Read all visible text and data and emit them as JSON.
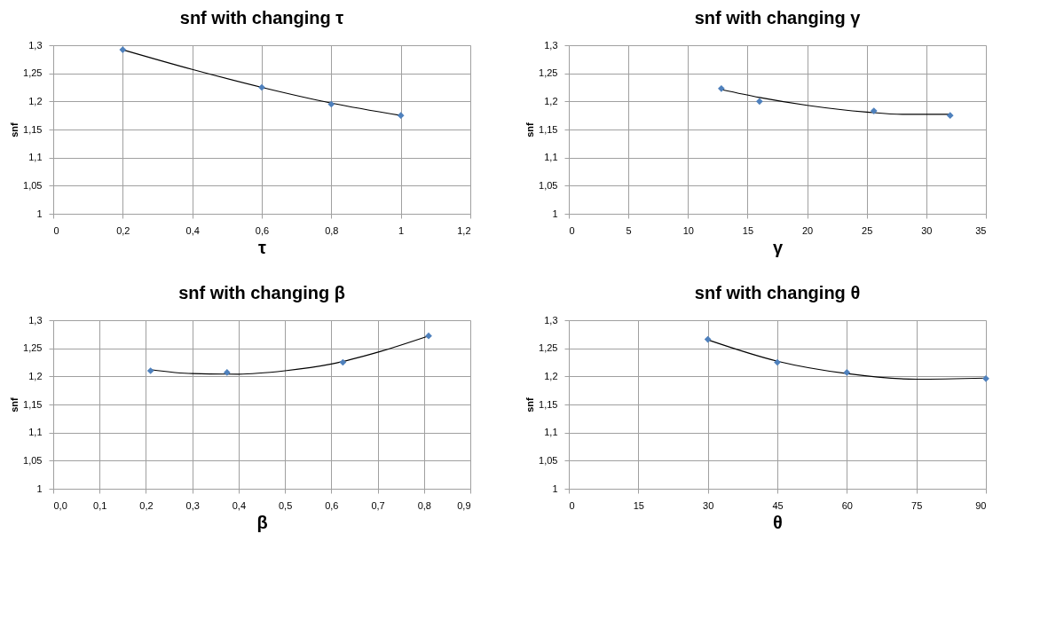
{
  "chart_data": [
    {
      "type": "scatter",
      "title": "snf with changing τ",
      "xlabel": "τ",
      "ylabel": "snf",
      "marker": "diamond",
      "grid": true,
      "xlim": [
        0,
        1.2
      ],
      "xticks": [
        0,
        {
          "value": 0.2,
          "label": "0,2"
        },
        {
          "value": 0.4,
          "label": "0,4"
        },
        {
          "value": 0.6,
          "label": "0,6"
        },
        {
          "value": 0.8,
          "label": "0,8"
        },
        1,
        {
          "value": 1.2,
          "label": "1,2"
        }
      ],
      "ylim": [
        1,
        1.3
      ],
      "yticks": [
        {
          "value": 1,
          "label": "1"
        },
        {
          "value": 1.05,
          "label": "1,05"
        },
        {
          "value": 1.1,
          "label": "1,1"
        },
        {
          "value": 1.15,
          "label": "1,15"
        },
        {
          "value": 1.2,
          "label": "1,2"
        },
        {
          "value": 1.25,
          "label": "1,25"
        },
        {
          "value": 1.3,
          "label": "1,3"
        }
      ],
      "series": [
        {
          "color": "#4f81bd",
          "x": [
            0.2,
            0.6,
            0.8,
            1
          ],
          "values": [
            1.292,
            1.225,
            1.195,
            1.175
          ]
        },
        {
          "type": "line",
          "marker": "none",
          "color": "#000000",
          "x": [
            0.2,
            0.4,
            0.6,
            0.8,
            1
          ],
          "values": [
            1.292,
            1.257,
            1.225,
            1.197,
            1.175
          ]
        }
      ]
    },
    {
      "type": "scatter",
      "title": "snf with changing γ",
      "xlabel": "γ",
      "ylabel": "snf",
      "marker": "diamond",
      "grid": true,
      "xlim": [
        0,
        35
      ],
      "xticks": [
        0,
        5,
        10,
        15,
        20,
        25,
        30,
        35
      ],
      "ylim": [
        1,
        1.3
      ],
      "yticks": [
        {
          "value": 1,
          "label": "1"
        },
        {
          "value": 1.05,
          "label": "1,05"
        },
        {
          "value": 1.1,
          "label": "1,1"
        },
        {
          "value": 1.15,
          "label": "1,15"
        },
        {
          "value": 1.2,
          "label": "1,2"
        },
        {
          "value": 1.25,
          "label": "1,25"
        },
        {
          "value": 1.3,
          "label": "1,3"
        }
      ],
      "series": [
        {
          "color": "#4f81bd",
          "x": [
            12.8,
            16,
            25.6,
            32
          ],
          "values": [
            1.223,
            1.2,
            1.183,
            1.175
          ]
        },
        {
          "type": "line",
          "marker": "none",
          "color": "#000000",
          "x": [
            12.8,
            16,
            20,
            25,
            28,
            32
          ],
          "values": [
            1.221,
            1.207,
            1.193,
            1.181,
            1.177,
            1.177
          ]
        }
      ]
    },
    {
      "type": "scatter",
      "title": "snf with changing β",
      "xlabel": "β",
      "ylabel": "snf",
      "marker": "diamond",
      "grid": true,
      "xlim": [
        0,
        0.9
      ],
      "xticks": [
        {
          "value": 0,
          "label": "0,0"
        },
        {
          "value": 0.1,
          "label": "0,1"
        },
        {
          "value": 0.2,
          "label": "0,2"
        },
        {
          "value": 0.3,
          "label": "0,3"
        },
        {
          "value": 0.4,
          "label": "0,4"
        },
        {
          "value": 0.5,
          "label": "0,5"
        },
        {
          "value": 0.6,
          "label": "0,6"
        },
        {
          "value": 0.7,
          "label": "0,7"
        },
        {
          "value": 0.8,
          "label": "0,8"
        },
        {
          "value": 0.9,
          "label": "0,9"
        }
      ],
      "ylim": [
        1,
        1.3
      ],
      "yticks": [
        {
          "value": 1,
          "label": "1"
        },
        {
          "value": 1.05,
          "label": "1,05"
        },
        {
          "value": 1.1,
          "label": "1,1"
        },
        {
          "value": 1.15,
          "label": "1,15"
        },
        {
          "value": 1.2,
          "label": "1,2"
        },
        {
          "value": 1.25,
          "label": "1,25"
        },
        {
          "value": 1.3,
          "label": "1,3"
        }
      ],
      "series": [
        {
          "color": "#4f81bd",
          "x": [
            0.21,
            0.375,
            0.625,
            0.81
          ],
          "values": [
            1.21,
            1.207,
            1.225,
            1.272
          ]
        },
        {
          "type": "line",
          "marker": "none",
          "color": "#000000",
          "x": [
            0.21,
            0.3,
            0.4,
            0.5,
            0.6,
            0.7,
            0.81
          ],
          "values": [
            1.212,
            1.205,
            1.204,
            1.21,
            1.222,
            1.243,
            1.272
          ]
        }
      ]
    },
    {
      "type": "scatter",
      "title": "snf with changing θ",
      "xlabel": "θ",
      "ylabel": "snf",
      "marker": "diamond",
      "grid": true,
      "xlim": [
        0,
        90
      ],
      "xticks": [
        0,
        15,
        30,
        45,
        60,
        75,
        90
      ],
      "ylim": [
        1,
        1.3
      ],
      "yticks": [
        {
          "value": 1,
          "label": "1"
        },
        {
          "value": 1.05,
          "label": "1,05"
        },
        {
          "value": 1.1,
          "label": "1,1"
        },
        {
          "value": 1.15,
          "label": "1,15"
        },
        {
          "value": 1.2,
          "label": "1,2"
        },
        {
          "value": 1.25,
          "label": "1,25"
        },
        {
          "value": 1.3,
          "label": "1,3"
        }
      ],
      "series": [
        {
          "color": "#4f81bd",
          "x": [
            30,
            45,
            60,
            90
          ],
          "values": [
            1.266,
            1.225,
            1.207,
            1.196
          ]
        },
        {
          "type": "line",
          "marker": "none",
          "color": "#000000",
          "x": [
            30,
            45,
            60,
            75,
            90
          ],
          "values": [
            1.265,
            1.227,
            1.205,
            1.195,
            1.197
          ]
        }
      ]
    }
  ]
}
